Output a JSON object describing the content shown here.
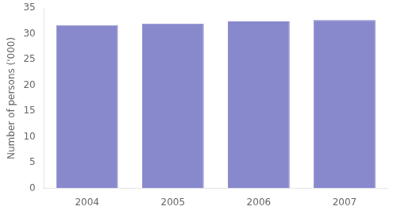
{
  "chart_data": {
    "type": "bar",
    "categories": [
      "2004",
      "2005",
      "2006",
      "2007"
    ],
    "values": [
      31.7,
      32.0,
      32.4,
      32.7
    ],
    "color": "#8888cc",
    "ylabel": "Number of persons ('000)",
    "ylim": [
      0,
      35
    ],
    "yticks": [
      0,
      5,
      10,
      15,
      20,
      25,
      30,
      35
    ],
    "grid": false
  }
}
